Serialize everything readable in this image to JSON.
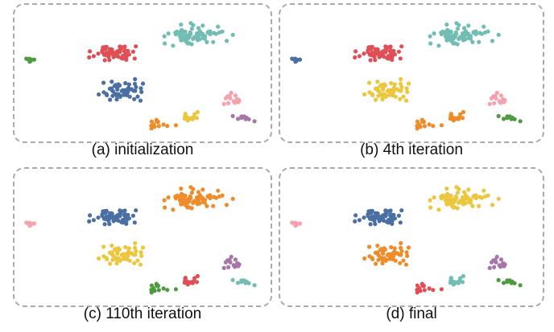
{
  "panels": [
    {
      "caption": "(a) initialization",
      "assign": {
        "A": "green",
        "B": "red",
        "C": "teal",
        "D": "blue",
        "E": "yellow",
        "F": "orange",
        "G": "pink",
        "H": "purple"
      }
    },
    {
      "caption": "(b) 4th iteration",
      "assign": {
        "A": "blue",
        "B": "red",
        "C": "teal",
        "D": "yellow",
        "E": "orange",
        "F": "orange",
        "G": "pink",
        "H": "green"
      }
    },
    {
      "caption": "(c) 110th iteration",
      "assign": {
        "A": "pink",
        "B": "blue",
        "C": "orange",
        "D": "yellow",
        "E": "red",
        "F": "green",
        "G": "purple",
        "H": "teal"
      }
    },
    {
      "caption": "(d) final",
      "assign": {
        "A": "pink",
        "B": "blue",
        "C": "yellow",
        "D": "orange",
        "E": "teal",
        "F": "red",
        "G": "purple",
        "H": "green"
      }
    }
  ],
  "colors": {
    "green": "#4e9a3e",
    "red": "#e04f55",
    "teal": "#72bdb3",
    "blue": "#4a6fa5",
    "yellow": "#ecc63d",
    "orange": "#ef8c2a",
    "pink": "#f7a1ad",
    "purple": "#a875a8"
  }
}
